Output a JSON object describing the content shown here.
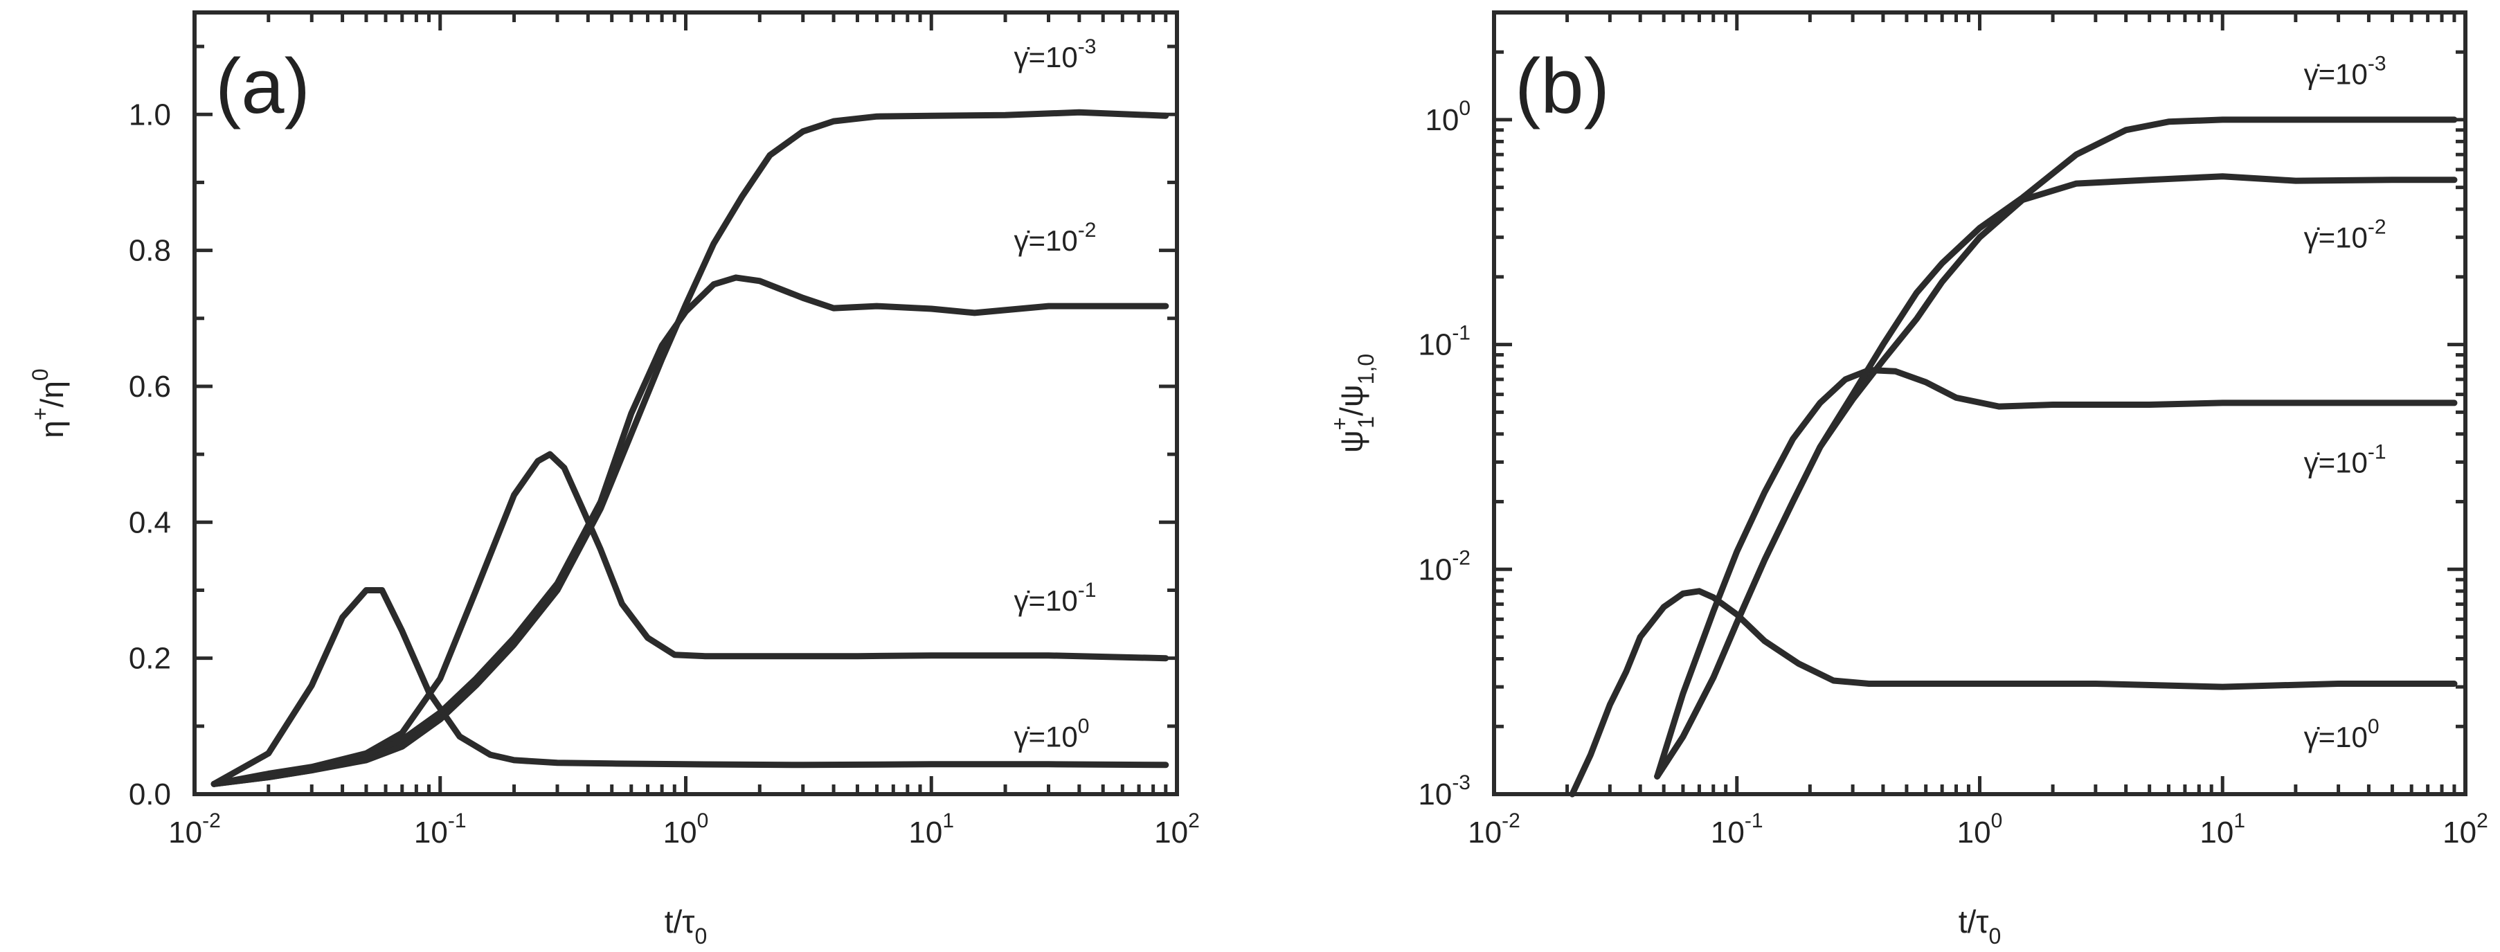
{
  "chart_data": [
    {
      "type": "line",
      "panel_label": "(a)",
      "xlabel": {
        "main": "t/τ",
        "sub": "0"
      },
      "ylabel": {
        "main": "η",
        "sup": "+",
        "after": "/η",
        "sup2": "0"
      },
      "xscale": "log",
      "yscale": "linear",
      "xlim": [
        0.01,
        100
      ],
      "ylim": [
        0,
        1.15
      ],
      "x_tick_labels": [
        {
          "value": 0.01,
          "base": "10",
          "exp": "-2"
        },
        {
          "value": 0.1,
          "base": "10",
          "exp": "-1"
        },
        {
          "value": 1,
          "base": "10",
          "exp": "0"
        },
        {
          "value": 10,
          "base": "10",
          "exp": "1"
        },
        {
          "value": 100,
          "base": "10",
          "exp": "2"
        }
      ],
      "y_tick_labels": [
        {
          "value": 0.0,
          "text": "0.0"
        },
        {
          "value": 0.2,
          "text": "0.2"
        },
        {
          "value": 0.4,
          "text": "0.4"
        },
        {
          "value": 0.6,
          "text": "0.6"
        },
        {
          "value": 0.8,
          "text": "0.8"
        },
        {
          "value": 1.0,
          "text": "1.0"
        }
      ],
      "series": [
        {
          "label_base": "γ̇=10",
          "label_exp": "0",
          "label_at": [
            30,
            0.085
          ],
          "x": [
            0.012,
            0.02,
            0.03,
            0.04,
            0.05,
            0.058,
            0.07,
            0.09,
            0.12,
            0.16,
            0.2,
            0.3,
            0.5,
            1,
            3,
            10,
            30,
            90
          ],
          "y": [
            0.015,
            0.06,
            0.16,
            0.26,
            0.3,
            0.3,
            0.24,
            0.15,
            0.085,
            0.058,
            0.05,
            0.046,
            0.045,
            0.044,
            0.043,
            0.044,
            0.044,
            0.043
          ]
        },
        {
          "label_base": "γ̇=10",
          "label_exp": "-1",
          "label_at": [
            30,
            0.285
          ],
          "x": [
            0.012,
            0.02,
            0.03,
            0.05,
            0.07,
            0.1,
            0.14,
            0.2,
            0.25,
            0.28,
            0.32,
            0.38,
            0.45,
            0.55,
            0.7,
            0.9,
            1.2,
            2,
            5,
            10,
            30,
            90
          ],
          "y": [
            0.015,
            0.03,
            0.04,
            0.06,
            0.09,
            0.17,
            0.3,
            0.44,
            0.49,
            0.5,
            0.48,
            0.42,
            0.36,
            0.28,
            0.23,
            0.205,
            0.203,
            0.203,
            0.203,
            0.204,
            0.204,
            0.2
          ]
        },
        {
          "label_base": "γ̇=10",
          "label_exp": "-2",
          "label_at": [
            30,
            0.815
          ],
          "x": [
            0.012,
            0.02,
            0.03,
            0.05,
            0.07,
            0.1,
            0.14,
            0.2,
            0.3,
            0.45,
            0.6,
            0.8,
            1,
            1.3,
            1.6,
            2,
            3,
            4,
            6,
            10,
            15,
            30,
            90
          ],
          "y": [
            0.015,
            0.025,
            0.035,
            0.055,
            0.08,
            0.12,
            0.17,
            0.23,
            0.31,
            0.43,
            0.56,
            0.66,
            0.71,
            0.75,
            0.76,
            0.755,
            0.73,
            0.715,
            0.718,
            0.714,
            0.708,
            0.718,
            0.718
          ]
        },
        {
          "label_base": "γ̇=10",
          "label_exp": "-3",
          "label_at": [
            30,
            1.085
          ],
          "x": [
            0.012,
            0.02,
            0.03,
            0.05,
            0.07,
            0.1,
            0.14,
            0.2,
            0.3,
            0.45,
            0.6,
            0.8,
            1,
            1.3,
            1.7,
            2.2,
            3,
            4,
            6,
            10,
            20,
            40,
            90
          ],
          "y": [
            0.015,
            0.025,
            0.035,
            0.05,
            0.07,
            0.11,
            0.16,
            0.22,
            0.3,
            0.42,
            0.53,
            0.64,
            0.72,
            0.81,
            0.88,
            0.94,
            0.975,
            0.99,
            0.997,
            0.998,
            0.999,
            1.003,
            0.998
          ]
        }
      ]
    },
    {
      "type": "line",
      "panel_label": "(b)",
      "xlabel": {
        "main": "t/τ",
        "sub": "0"
      },
      "ylabel": {
        "main": "ψ",
        "sup": "+",
        "sub": "1",
        "after": "/ψ",
        "sub2": "1,0"
      },
      "xscale": "log",
      "yscale": "log",
      "xlim": [
        0.01,
        100
      ],
      "ylim": [
        0.001,
        3
      ],
      "x_tick_labels": [
        {
          "value": 0.01,
          "base": "10",
          "exp": "-2"
        },
        {
          "value": 0.1,
          "base": "10",
          "exp": "-1"
        },
        {
          "value": 1,
          "base": "10",
          "exp": "0"
        },
        {
          "value": 10,
          "base": "10",
          "exp": "1"
        },
        {
          "value": 100,
          "base": "10",
          "exp": "2"
        }
      ],
      "y_tick_labels": [
        {
          "value": 0.001,
          "base": "10",
          "exp": "-3"
        },
        {
          "value": 0.01,
          "base": "10",
          "exp": "-2"
        },
        {
          "value": 0.1,
          "base": "10",
          "exp": "-1"
        },
        {
          "value": 1,
          "base": "10",
          "exp": "0"
        }
      ],
      "series": [
        {
          "label_base": "γ̇=10",
          "label_exp": "0",
          "label_at": [
            30,
            0.0018
          ],
          "x": [
            0.021,
            0.025,
            0.03,
            0.035,
            0.04,
            0.05,
            0.06,
            0.07,
            0.08,
            0.1,
            0.13,
            0.18,
            0.25,
            0.35,
            0.5,
            1,
            3,
            10,
            30,
            90
          ],
          "y": [
            0.001,
            0.0015,
            0.0025,
            0.0035,
            0.005,
            0.0068,
            0.0078,
            0.008,
            0.0075,
            0.0063,
            0.0048,
            0.0038,
            0.0032,
            0.0031,
            0.0031,
            0.0031,
            0.0031,
            0.003,
            0.0031,
            0.0031
          ]
        },
        {
          "label_base": "γ̇=10",
          "label_exp": "-1",
          "label_at": [
            30,
            0.03
          ],
          "x": [
            0.047,
            0.06,
            0.08,
            0.1,
            0.13,
            0.17,
            0.22,
            0.28,
            0.35,
            0.45,
            0.6,
            0.8,
            1.2,
            2,
            5,
            10,
            30,
            90
          ],
          "y": [
            0.0012,
            0.0028,
            0.0065,
            0.012,
            0.022,
            0.038,
            0.055,
            0.07,
            0.077,
            0.076,
            0.068,
            0.058,
            0.053,
            0.054,
            0.054,
            0.055,
            0.055,
            0.055
          ]
        },
        {
          "label_base": "γ̇=10",
          "label_exp": "-2",
          "label_at": [
            30,
            0.3
          ],
          "x": [
            0.047,
            0.06,
            0.08,
            0.1,
            0.13,
            0.17,
            0.22,
            0.3,
            0.4,
            0.55,
            0.7,
            1,
            1.5,
            2.5,
            5,
            10,
            20,
            50,
            90
          ],
          "y": [
            0.0012,
            0.0018,
            0.0033,
            0.0058,
            0.011,
            0.02,
            0.035,
            0.057,
            0.085,
            0.13,
            0.19,
            0.3,
            0.44,
            0.52,
            0.54,
            0.56,
            0.535,
            0.54,
            0.54
          ]
        },
        {
          "label_base": "γ̇=10",
          "label_exp": "-3",
          "label_at": [
            30,
            1.6
          ],
          "x": [
            0.047,
            0.06,
            0.08,
            0.1,
            0.13,
            0.17,
            0.22,
            0.3,
            0.4,
            0.55,
            0.7,
            1,
            1.5,
            2.5,
            4,
            6,
            10,
            30,
            90
          ],
          "y": [
            0.0012,
            0.0018,
            0.0033,
            0.0058,
            0.011,
            0.02,
            0.035,
            0.06,
            0.1,
            0.17,
            0.23,
            0.33,
            0.45,
            0.7,
            0.9,
            0.98,
            1.0,
            1.0,
            1.0
          ]
        }
      ]
    }
  ]
}
